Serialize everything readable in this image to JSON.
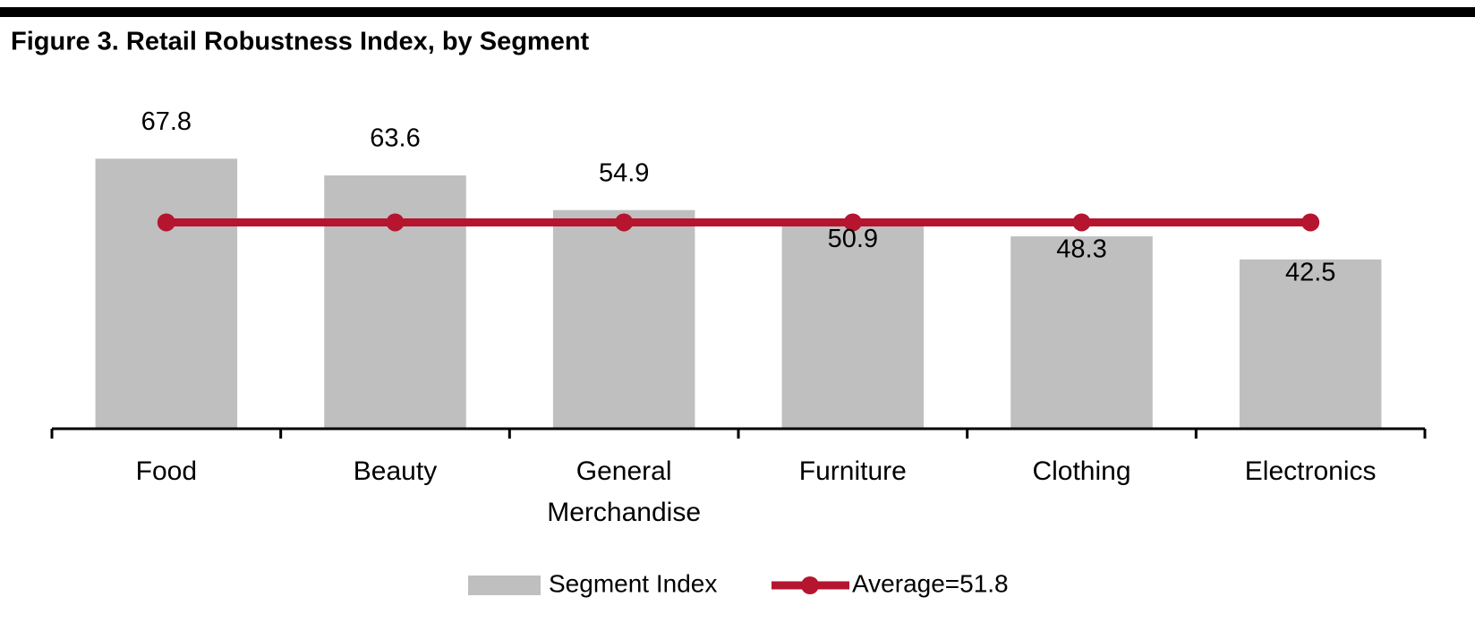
{
  "chart_data": {
    "type": "bar",
    "title": "Figure 3. Retail Robustness Index, by Segment",
    "categories": [
      "Food",
      "Beauty",
      "General Merchandise",
      "Furniture",
      "Clothing",
      "Electronics"
    ],
    "series": [
      {
        "name": "Segment Index",
        "type": "bar",
        "color": "#bfbfbf",
        "values": [
          67.8,
          63.6,
          54.9,
          50.9,
          48.3,
          42.5
        ]
      },
      {
        "name": "Average=51.8",
        "type": "line",
        "color": "#b5152f",
        "values": [
          51.8,
          51.8,
          51.8,
          51.8,
          51.8,
          51.8
        ]
      }
    ],
    "ylim": [
      0,
      80
    ],
    "legend": "bottom"
  }
}
